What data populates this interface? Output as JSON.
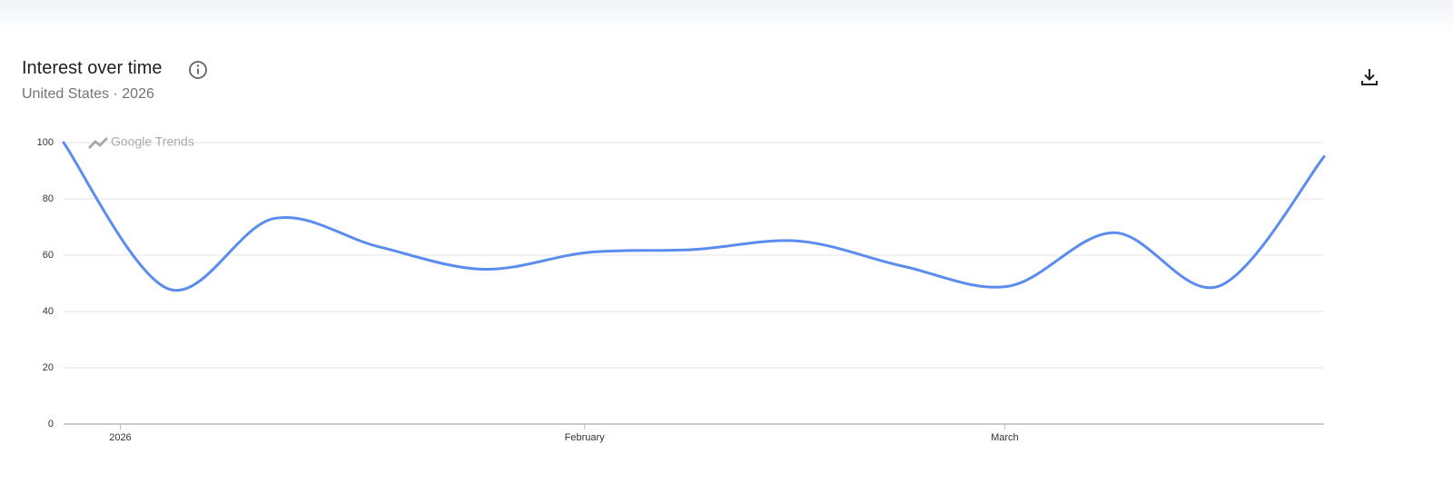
{
  "header": {
    "title": "Interest over time",
    "subtitle": "United States · 2026"
  },
  "chart_data": {
    "type": "line",
    "watermark": "Google Trends",
    "x": [
      0,
      1,
      2,
      3,
      4,
      5,
      6,
      7,
      8,
      9,
      10,
      11,
      12
    ],
    "series": [
      {
        "color": "#5b8def",
        "values": [
          100,
          48,
          73,
          63,
          55,
          61,
          62,
          65,
          56,
          49,
          68,
          49,
          95
        ]
      }
    ],
    "xlim": [
      0,
      12
    ],
    "xticks": [
      {
        "value": 0.54,
        "label": "2026"
      },
      {
        "value": 4.96,
        "label": "February"
      },
      {
        "value": 8.96,
        "label": "March"
      }
    ],
    "ylim": [
      0,
      100
    ],
    "yticks": [
      0,
      20,
      40,
      60,
      80,
      100
    ],
    "grid": true
  }
}
